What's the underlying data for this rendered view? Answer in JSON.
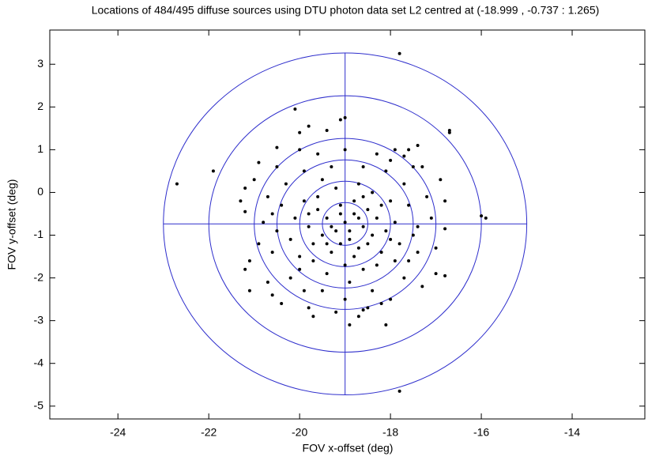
{
  "chart_data": {
    "type": "scatter",
    "title": "Locations of 484/495 diffuse sources using DTU photon data set L2 centred at (-18.999 , -0.737 : 1.265)",
    "x_label": "FOV x-offset (deg)",
    "y_label": "FOV y-offset (deg)",
    "xlim": [
      -25.5,
      -12.4
    ],
    "ylim": [
      -5.3,
      3.8
    ],
    "xticks": [
      -24,
      -22,
      -20,
      -18,
      -16,
      -14
    ],
    "yticks": [
      -5,
      -4,
      -3,
      -2,
      -1,
      0,
      1,
      2,
      3
    ],
    "color": "#000000",
    "circles": {
      "center": [
        -18.999,
        -0.737
      ],
      "radii": [
        0.5,
        1,
        1.5,
        2,
        3,
        4
      ],
      "color": "#2e2ecc"
    },
    "x": [
      -22.7,
      -21.9,
      -17.8,
      -17.8,
      -16.7,
      -16.7,
      -15.9,
      -16.0,
      -20.1,
      -19.0,
      -19.1,
      -20.5,
      -21.2,
      -21.2,
      -21.1,
      -21.2,
      -20.4,
      -20.6,
      -18.1,
      -18.9,
      -16.8,
      -17.4,
      -19.4,
      -19.8,
      -20.0,
      -18.0,
      -17.7,
      -17.5,
      -16.8,
      -18.6,
      -18.5,
      -19.8,
      -19.0,
      -18.8,
      -19.2,
      -18.6,
      -19.4,
      -18.9,
      -19.1,
      -18.5,
      -19.5,
      -18.7,
      -19.3,
      -18.4,
      -19.6,
      -18.3,
      -19.8,
      -18.1,
      -19.7,
      -18.2,
      -19.9,
      -18.0,
      -19.2,
      -18.7,
      -19.5,
      -18.4,
      -20.1,
      -17.9,
      -20.2,
      -17.8,
      -19.0,
      -18.6,
      -19.4,
      -18.9,
      -19.7,
      -18.3,
      -20.0,
      -17.9,
      -20.4,
      -17.6,
      -20.5,
      -17.5,
      -20.3,
      -17.7,
      -19.3,
      -18.6,
      -19.9,
      -18.1,
      -20.6,
      -17.4,
      -20.2,
      -17.7,
      -19.5,
      -18.4,
      -19.0,
      -18.2,
      -19.9,
      -20.7,
      -17.2,
      -20.8,
      -17.1,
      -20.9,
      -17.0,
      -20.5,
      -17.3,
      -19.6,
      -18.3,
      -19.0,
      -20.0,
      -17.9,
      -21.0,
      -16.9,
      -21.1,
      -17.0,
      -20.7,
      -17.3,
      -19.2,
      -18.7,
      -19.7,
      -18.0,
      -20.9,
      -17.6,
      -18.8,
      -19.1,
      -18.9,
      -19.3,
      -18.7,
      -18.5,
      -19.4,
      -18.8,
      -19.1,
      -18.6,
      -19.6,
      -18.2,
      -19.8,
      -18.0,
      -20.0,
      -17.6,
      -17.4,
      -20.6,
      -21.3,
      -16.8
    ],
    "values": [
      0.2,
      0.5,
      3.25,
      -4.65,
      1.4,
      1.45,
      -0.6,
      -0.55,
      1.95,
      1.75,
      1.7,
      1.05,
      0.1,
      -0.45,
      -2.3,
      -1.8,
      -2.6,
      -2.4,
      -3.1,
      -3.1,
      -1.95,
      1.1,
      1.45,
      1.55,
      1.4,
      0.75,
      0.85,
      0.6,
      -0.85,
      -2.75,
      -2.7,
      -2.7,
      -0.7,
      -0.5,
      -0.9,
      -0.8,
      -0.6,
      -1.1,
      -0.3,
      -0.4,
      -1.0,
      -1.3,
      -1.4,
      -1.0,
      -0.4,
      -0.6,
      -0.8,
      -0.9,
      -1.2,
      -1.4,
      -0.2,
      -0.2,
      0.1,
      0.2,
      0.3,
      0.0,
      -0.6,
      -0.7,
      -1.1,
      -1.2,
      -1.7,
      -1.8,
      -1.9,
      -2.1,
      -1.6,
      -1.7,
      -1.5,
      -1.6,
      -0.3,
      -0.3,
      -0.9,
      -1.0,
      0.2,
      0.2,
      0.6,
      0.6,
      0.5,
      0.5,
      -1.4,
      -1.4,
      -2.0,
      -2.0,
      -2.3,
      -2.3,
      -2.5,
      -2.6,
      -2.3,
      -0.1,
      -0.1,
      -0.7,
      -0.6,
      -1.2,
      -1.3,
      0.6,
      0.6,
      0.9,
      0.9,
      1.0,
      1.0,
      1.0,
      0.3,
      0.3,
      -1.6,
      -1.9,
      -2.1,
      -2.2,
      -2.8,
      -2.9,
      -2.9,
      -2.5,
      0.7,
      1.0,
      -0.2,
      -0.5,
      -0.9,
      -0.8,
      -0.6,
      -1.2,
      -1.2,
      -1.5,
      -1.2,
      -0.1,
      -0.1,
      -0.3,
      -0.5,
      -1.1,
      -1.8,
      -1.6,
      -0.8,
      -0.5,
      -0.2,
      -0.2
    ]
  }
}
